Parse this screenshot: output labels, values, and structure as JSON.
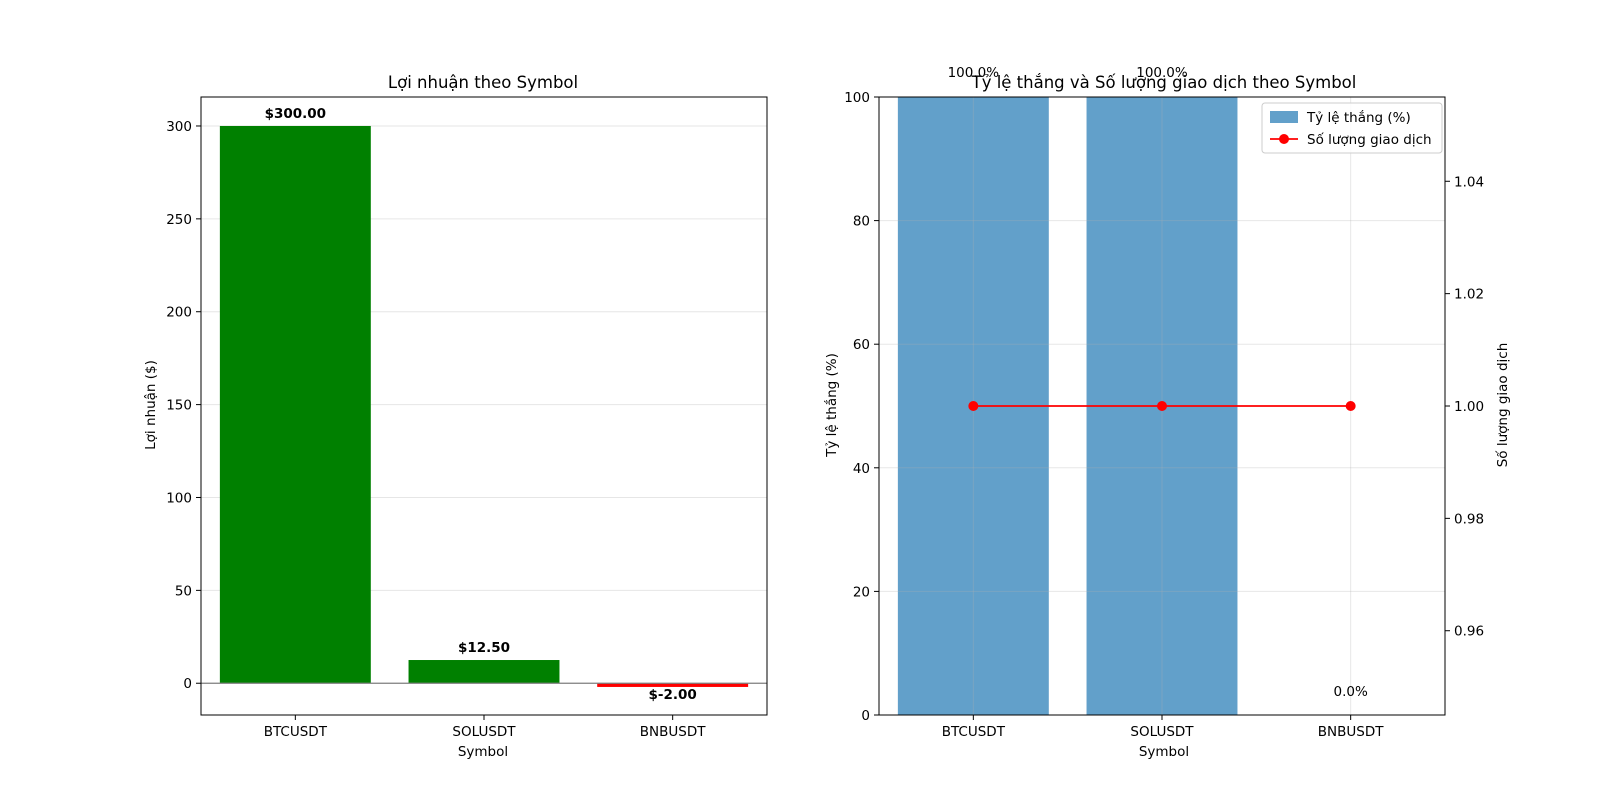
{
  "chart_data": [
    {
      "type": "bar",
      "title": "Lợi nhuận theo Symbol",
      "xlabel": "Symbol",
      "ylabel": "Lợi nhuận ($)",
      "categories": [
        "BTCUSDT",
        "SOLUSDT",
        "BNBUSDT"
      ],
      "values": [
        300.0,
        12.5,
        -2.0
      ],
      "data_labels": [
        "$300.00",
        "$12.50",
        "$-2.00"
      ],
      "colors": [
        "#008000",
        "#008000",
        "#ff0000"
      ],
      "ylim": [
        -17.1,
        315.6
      ],
      "yticks": [
        0,
        50,
        100,
        150,
        200,
        250,
        300
      ],
      "grid": "y",
      "zero_line": true
    },
    {
      "type": "bar",
      "title": "Tỷ lệ thắng và Số lượng giao dịch theo Symbol",
      "xlabel": "Symbol",
      "ylabel": "Tỷ lệ thắng (%)",
      "y2label": "Số lượng giao dịch",
      "categories": [
        "BTCUSDT",
        "SOLUSDT",
        "BNBUSDT"
      ],
      "series": [
        {
          "name": "Tỷ lệ thắng (%)",
          "type": "bar",
          "axis": "left",
          "values": [
            100.0,
            100.0,
            0.0
          ],
          "data_labels": [
            "100.0%",
            "100.0%",
            "0.0%"
          ],
          "color": "#1f77b4"
        },
        {
          "name": "Số lượng giao dịch",
          "type": "line",
          "axis": "right",
          "values": [
            1,
            1,
            1
          ],
          "color": "#ff0000"
        }
      ],
      "ylim": [
        0,
        100
      ],
      "yticks": [
        0,
        20,
        40,
        60,
        80,
        100
      ],
      "y2lim": [
        0.945,
        1.055
      ],
      "y2ticks": [
        "0.96",
        "0.98",
        "1.00",
        "1.02",
        "1.04"
      ],
      "grid": "both",
      "legend": "top-right"
    }
  ]
}
